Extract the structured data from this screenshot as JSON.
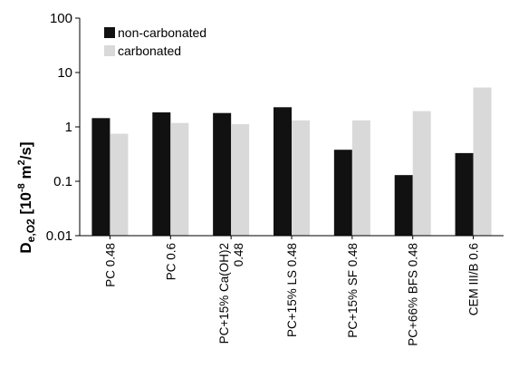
{
  "chart_data": {
    "type": "bar",
    "y_scale": "log",
    "ylim": [
      0.01,
      100
    ],
    "y_ticks": [
      "100",
      "10",
      "1",
      "0.1",
      "0.01"
    ],
    "ylabel": {
      "main": "D",
      "sub": "e,O2",
      "bracket_open": " [10",
      "exp": "-8",
      "unit": " m",
      "unit_exp": "2",
      "close": "/s]"
    },
    "categories": [
      [
        "PC 0.48"
      ],
      [
        "PC 0.6"
      ],
      [
        "PC+15% Ca(OH)2",
        "0.48"
      ],
      [
        "PC+15% LS 0.48"
      ],
      [
        "PC+15% SF 0.48"
      ],
      [
        "PC+66% BFS 0.48"
      ],
      [
        "CEM III/B 0.6"
      ]
    ],
    "series": [
      {
        "name": "non-carbonated",
        "color": "#111111",
        "values": [
          1.45,
          1.85,
          1.8,
          2.3,
          0.38,
          0.13,
          0.33
        ]
      },
      {
        "name": "carbonated",
        "color": "#d9d9d9",
        "values": [
          0.75,
          1.18,
          1.12,
          1.32,
          1.32,
          1.95,
          5.3
        ]
      }
    ],
    "legend_position": "top-left",
    "grid": false
  }
}
